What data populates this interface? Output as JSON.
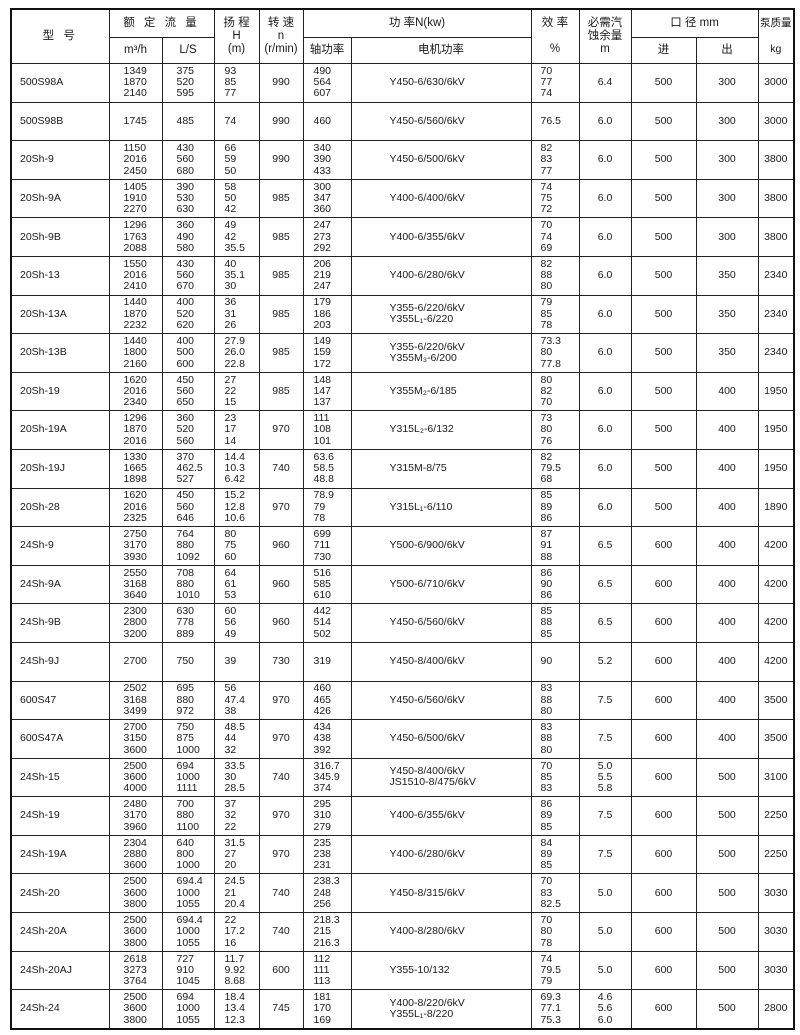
{
  "header": {
    "model": "型  号",
    "flow": "额 定 流 量",
    "flow_m3h": "m³/h",
    "flow_ls": "L/S",
    "head": "扬 程\nH\n(m)",
    "speed": "转 速\nn\n(r/min)",
    "power": "功     率N(kw)",
    "shaft_power": "轴功率",
    "motor_power": "电机功率",
    "efficiency": "效 率\n\n%",
    "npsh": "必需汽\n蚀余量\nm",
    "diameter": "口 径 mm",
    "inlet": "进",
    "outlet": "出",
    "mass": "泵质量\n\nkg"
  },
  "rows": [
    {
      "model": "500S98A",
      "q": "1349\n1870\n2140",
      "ls": "375\n520\n595",
      "h": "93\n85\n77",
      "n": "990",
      "p": "490\n564\n607",
      "motor": "Y450-6/630/6kV",
      "eff": "70\n77\n74",
      "npsh": "6.4",
      "in": "500",
      "out": "300",
      "kg": "3000"
    },
    {
      "model": "500S98B",
      "q": "1745",
      "ls": "485",
      "h": "74",
      "n": "990",
      "p": "460",
      "motor": "Y450-6/560/6kV",
      "eff": "76.5",
      "npsh": "6.0",
      "in": "500",
      "out": "300",
      "kg": "3000"
    },
    {
      "model": "20Sh-9",
      "q": "1150\n2016\n2450",
      "ls": "430\n560\n680",
      "h": "66\n59\n50",
      "n": "990",
      "p": "340\n390\n433",
      "motor": "Y450-6/500/6kV",
      "eff": "82\n83\n77",
      "npsh": "6.0",
      "in": "500",
      "out": "300",
      "kg": "3800"
    },
    {
      "model": "20Sh-9A",
      "q": "1405\n1910\n2270",
      "ls": "390\n530\n630",
      "h": "58\n50\n42",
      "n": "985",
      "p": "300\n347\n360",
      "motor": "Y400-6/400/6kV",
      "eff": "74\n75\n72",
      "npsh": "6.0",
      "in": "500",
      "out": "300",
      "kg": "3800"
    },
    {
      "model": "20Sh-9B",
      "q": "1296\n1763\n2088",
      "ls": "360\n490\n580",
      "h": "49\n42\n35.5",
      "n": "985",
      "p": "247\n273\n292",
      "motor": "Y400-6/355/6kV",
      "eff": "70\n74\n69",
      "npsh": "6.0",
      "in": "500",
      "out": "300",
      "kg": "3800"
    },
    {
      "model": "20Sh-13",
      "q": "1550\n2016\n2410",
      "ls": "430\n560\n670",
      "h": "40\n35.1\n30",
      "n": "985",
      "p": "206\n219\n247",
      "motor": "Y400-6/280/6kV",
      "eff": "82\n88\n80",
      "npsh": "6.0",
      "in": "500",
      "out": "350",
      "kg": "2340"
    },
    {
      "model": "20Sh-13A",
      "q": "1440\n1870\n2232",
      "ls": "400\n520\n620",
      "h": "36\n31\n26",
      "n": "985",
      "p": "179\n186\n203",
      "motor": "Y355-6/220/6kV\nY355L₁-6/220",
      "eff": "79\n85\n78",
      "npsh": "6.0",
      "in": "500",
      "out": "350",
      "kg": "2340"
    },
    {
      "model": "20Sh-13B",
      "q": "1440\n1800\n2160",
      "ls": "400\n500\n600",
      "h": "27.9\n26.0\n22.8",
      "n": "985",
      "p": "149\n159\n172",
      "motor": "Y355-6/220/6kV\nY355M₃-6/200",
      "eff": "73.3\n80\n77.8",
      "npsh": "6.0",
      "in": "500",
      "out": "350",
      "kg": "2340"
    },
    {
      "model": "20Sh-19",
      "q": "1620\n2016\n2340",
      "ls": "450\n560\n650",
      "h": "27\n22\n15",
      "n": "985",
      "p": "148\n147\n137",
      "motor": "Y355M₂-6/185",
      "eff": "80\n82\n70",
      "npsh": "6.0",
      "in": "500",
      "out": "400",
      "kg": "1950"
    },
    {
      "model": "20Sh-19A",
      "q": "1296\n1870\n2016",
      "ls": "360\n520\n560",
      "h": "23\n17\n14",
      "n": "970",
      "p": "111\n108\n101",
      "motor": "Y315L₂-6/132",
      "eff": "73\n80\n76",
      "npsh": "6.0",
      "in": "500",
      "out": "400",
      "kg": "1950"
    },
    {
      "model": "20Sh-19J",
      "q": "1330\n1665\n1898",
      "ls": "370\n462.5\n527",
      "h": "14.4\n10.3\n6.42",
      "n": "740",
      "p": "63.6\n58.5\n48.8",
      "motor": "Y315M-8/75",
      "eff": "82\n79.5\n68",
      "npsh": "6.0",
      "in": "500",
      "out": "400",
      "kg": "1950"
    },
    {
      "model": "20Sh-28",
      "q": "1620\n2016\n2325",
      "ls": "450\n560\n646",
      "h": "15.2\n12.8\n10.6",
      "n": "970",
      "p": "78.9\n79\n78",
      "motor": "Y315L₁-6/110",
      "eff": "85\n89\n86",
      "npsh": "6.0",
      "in": "500",
      "out": "400",
      "kg": "1890"
    },
    {
      "model": "24Sh-9",
      "q": "2750\n3170\n3930",
      "ls": "764\n880\n1092",
      "h": "80\n75\n60",
      "n": "960",
      "p": "699\n711\n730",
      "motor": "Y500-6/900/6kV",
      "eff": "87\n91\n88",
      "npsh": "6.5",
      "in": "600",
      "out": "400",
      "kg": "4200"
    },
    {
      "model": "24Sh-9A",
      "q": "2550\n3168\n3640",
      "ls": "708\n880\n1010",
      "h": "64\n61\n53",
      "n": "960",
      "p": "516\n585\n610",
      "motor": "Y500-6/710/6kV",
      "eff": "86\n90\n86",
      "npsh": "6.5",
      "in": "600",
      "out": "400",
      "kg": "4200"
    },
    {
      "model": "24Sh-9B",
      "q": "2300\n2800\n3200",
      "ls": "630\n778\n889",
      "h": "60\n56\n49",
      "n": "960",
      "p": "442\n514\n502",
      "motor": "Y450-6/560/6kV",
      "eff": "85\n88\n85",
      "npsh": "6.5",
      "in": "600",
      "out": "400",
      "kg": "4200"
    },
    {
      "model": "24Sh-9J",
      "q": "2700",
      "ls": "750",
      "h": "39",
      "n": "730",
      "p": "319",
      "motor": "Y450-8/400/6kV",
      "eff": "90",
      "npsh": "5.2",
      "in": "600",
      "out": "400",
      "kg": "4200"
    },
    {
      "model": "600S47",
      "q": "2502\n3168\n3499",
      "ls": "695\n880\n972",
      "h": "56\n47.4\n38",
      "n": "970",
      "p": "460\n465\n426",
      "motor": "Y450-6/560/6kV",
      "eff": "83\n88\n80",
      "npsh": "7.5",
      "in": "600",
      "out": "400",
      "kg": "3500"
    },
    {
      "model": "600S47A",
      "q": "2700\n3150\n3600",
      "ls": "750\n875\n1000",
      "h": "48.5\n44\n32",
      "n": "970",
      "p": "434\n438\n392",
      "motor": "Y450-6/500/6kV",
      "eff": "83\n88\n80",
      "npsh": "7.5",
      "in": "600",
      "out": "400",
      "kg": "3500"
    },
    {
      "model": "24Sh-15",
      "q": "2500\n3600\n4000",
      "ls": "694\n1000\n1111",
      "h": "33.5\n30\n28.5",
      "n": "740",
      "p": "316.7\n345.9\n374",
      "motor": "Y450-8/400/6kV\nJS1510-8/475/6kV",
      "eff": "70\n85\n83",
      "npsh": "5.0\n5.5\n5.8",
      "in": "600",
      "out": "500",
      "kg": "3100"
    },
    {
      "model": "24Sh-19",
      "q": "2480\n3170\n3960",
      "ls": "700\n880\n1100",
      "h": "37\n32\n22",
      "n": "970",
      "p": "295\n310\n279",
      "motor": "Y400-6/355/6kV",
      "eff": "86\n89\n85",
      "npsh": "7.5",
      "in": "600",
      "out": "500",
      "kg": "2250"
    },
    {
      "model": "24Sh-19A",
      "q": "2304\n2880\n3600",
      "ls": "640\n800\n1000",
      "h": "31.5\n27\n20",
      "n": "970",
      "p": "235\n238\n231",
      "motor": "Y400-6/280/6kV",
      "eff": "84\n89\n85",
      "npsh": "7.5",
      "in": "600",
      "out": "500",
      "kg": "2250"
    },
    {
      "model": "24Sh-20",
      "q": "2500\n3600\n3800",
      "ls": "694.4\n1000\n1055",
      "h": "24.5\n21\n20.4",
      "n": "740",
      "p": "238.3\n248\n256",
      "motor": "Y450-8/315/6kV",
      "eff": "70\n83\n82.5",
      "npsh": "5.0",
      "in": "600",
      "out": "500",
      "kg": "3030"
    },
    {
      "model": "24Sh-20A",
      "q": "2500\n3600\n3800",
      "ls": "694.4\n1000\n1055",
      "h": "22\n17.2\n16",
      "n": "740",
      "p": "218.3\n215\n216.3",
      "motor": "Y400-8/280/6kV",
      "eff": "70\n80\n78",
      "npsh": "5.0",
      "in": "600",
      "out": "500",
      "kg": "3030"
    },
    {
      "model": "24Sh-20AJ",
      "q": "2618\n3273\n3764",
      "ls": "727\n910\n1045",
      "h": "11.7\n9.92\n8.68",
      "n": "600",
      "p": "112\n111\n113",
      "motor": "Y355-10/132",
      "eff": "74\n79.5\n79",
      "npsh": "5.0",
      "in": "600",
      "out": "500",
      "kg": "3030"
    },
    {
      "model": "24Sh-24",
      "q": "2500\n3600\n3800",
      "ls": "694\n1000\n1055",
      "h": "18.4\n13.4\n12.3",
      "n": "745",
      "p": "181\n170\n169",
      "motor": "Y400-8/220/6kV\nY355L₁-8/220",
      "eff": "69.3\n77.1\n75.3",
      "npsh": "4.6\n5.6\n6.0",
      "in": "600",
      "out": "500",
      "kg": "2800"
    }
  ]
}
